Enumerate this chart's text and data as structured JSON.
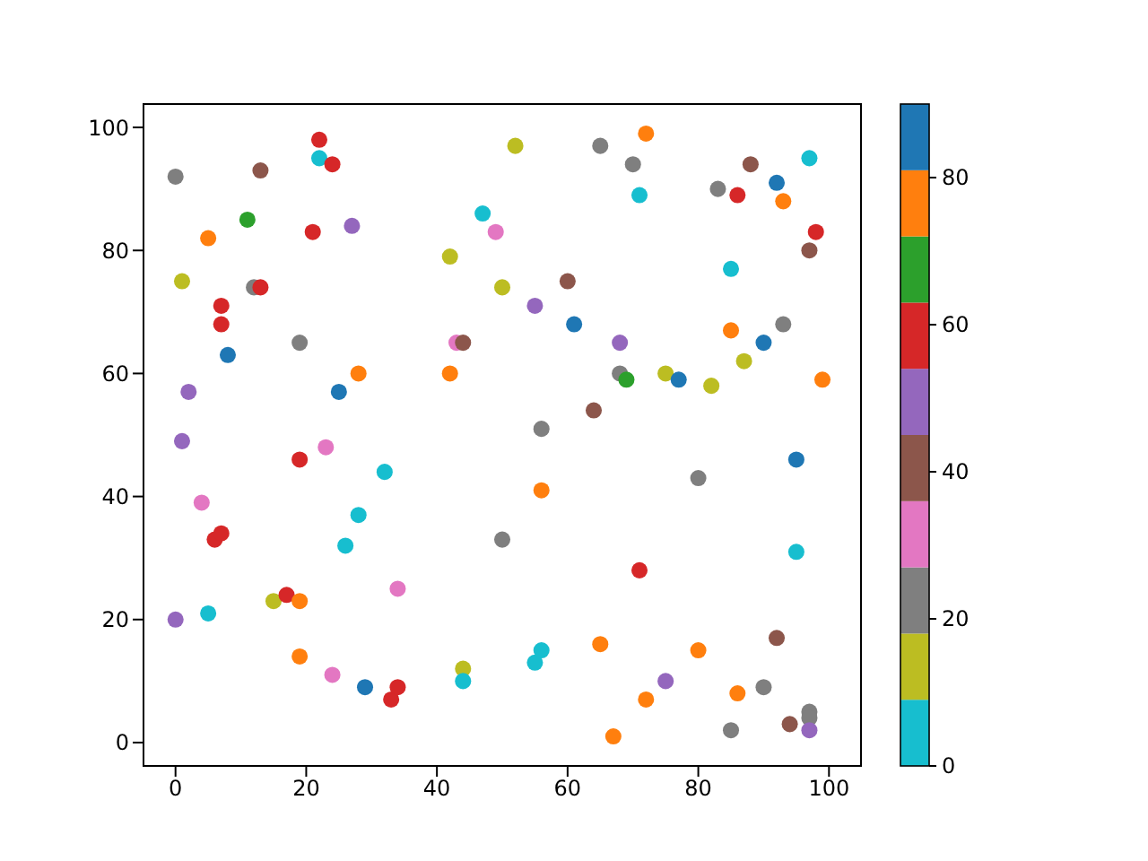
{
  "chart_data": {
    "type": "scatter",
    "x": [
      0,
      1,
      5,
      11,
      13,
      7,
      7,
      12,
      13,
      8,
      19,
      22,
      22,
      24,
      21,
      27,
      25,
      28,
      2,
      1,
      4,
      6,
      7,
      0,
      5,
      19,
      23,
      28,
      26,
      32,
      15,
      17,
      19,
      19,
      24,
      29,
      33,
      34,
      34,
      44,
      44,
      42,
      47,
      49,
      43,
      44,
      42,
      52,
      50,
      55,
      60,
      61,
      65,
      70,
      72,
      71,
      56,
      64,
      68,
      68,
      69,
      75,
      77,
      82,
      83,
      86,
      88,
      92,
      93,
      97,
      98,
      97,
      85,
      85,
      87,
      90,
      93,
      99,
      50,
      56,
      80,
      95,
      95,
      71,
      55,
      56,
      65,
      67,
      72,
      75,
      80,
      86,
      90,
      92,
      85,
      94,
      97,
      97,
      97
    ],
    "values": [
      92,
      75,
      82,
      85,
      93,
      71,
      68,
      74,
      74,
      63,
      65,
      98,
      95,
      94,
      83,
      84,
      57,
      60,
      57,
      49,
      39,
      33,
      34,
      20,
      21,
      46,
      48,
      37,
      32,
      44,
      23,
      24,
      23,
      14,
      11,
      9,
      7,
      9,
      25,
      12,
      10,
      79,
      86,
      83,
      65,
      65,
      60,
      97,
      74,
      71,
      75,
      68,
      97,
      94,
      99,
      89,
      51,
      54,
      65,
      60,
      59,
      60,
      59,
      58,
      90,
      89,
      94,
      91,
      88,
      95,
      83,
      80,
      77,
      67,
      62,
      65,
      68,
      59,
      33,
      41,
      43,
      46,
      31,
      28,
      13,
      15,
      16,
      1,
      7,
      10,
      15,
      8,
      9,
      17,
      2,
      3,
      5,
      4,
      2
    ],
    "cvalues": [
      22.5,
      13.5,
      76.5,
      67.5,
      40.5,
      58.5,
      58.5,
      22.5,
      58.5,
      85.5,
      22.5,
      58.5,
      4.5,
      58.5,
      58.5,
      49.5,
      85.5,
      76.5,
      49.5,
      49.5,
      31.5,
      58.5,
      58.5,
      49.5,
      4.5,
      58.5,
      31.5,
      4.5,
      4.5,
      4.5,
      13.5,
      58.5,
      76.5,
      76.5,
      31.5,
      85.5,
      58.5,
      58.5,
      31.5,
      13.5,
      4.5,
      13.5,
      4.5,
      31.5,
      31.5,
      40.5,
      76.5,
      13.5,
      13.5,
      49.5,
      40.5,
      85.5,
      22.5,
      22.5,
      76.5,
      4.5,
      22.5,
      40.5,
      49.5,
      22.5,
      67.5,
      13.5,
      85.5,
      13.5,
      22.5,
      58.5,
      40.5,
      85.5,
      76.5,
      4.5,
      58.5,
      40.5,
      4.5,
      76.5,
      13.5,
      85.5,
      22.5,
      76.5,
      22.5,
      76.5,
      22.5,
      85.5,
      4.5,
      58.5,
      4.5,
      4.5,
      76.5,
      76.5,
      76.5,
      49.5,
      76.5,
      76.5,
      22.5,
      40.5,
      22.5,
      40.5,
      22.5,
      22.5,
      49.5
    ],
    "xlim": [
      -4.9,
      104.9
    ],
    "ylim": [
      -3.8,
      103.8
    ],
    "xticks": [
      0,
      20,
      40,
      60,
      80,
      100
    ],
    "yticks": [
      0,
      20,
      40,
      60,
      80,
      100
    ],
    "clim": [
      0,
      90
    ],
    "cticks": [
      0,
      20,
      40,
      60,
      80
    ],
    "marker": "circle",
    "grid": false
  }
}
